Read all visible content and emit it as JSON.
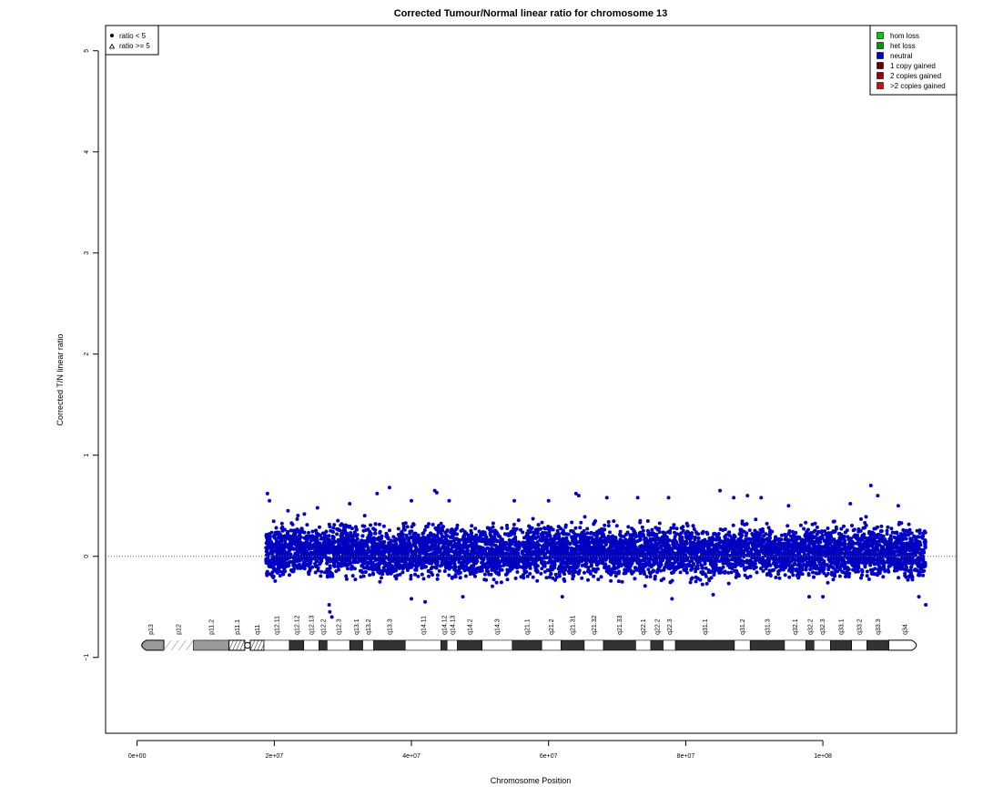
{
  "chart_data": {
    "type": "scatter",
    "title": "Corrected Tumour/Normal linear ratio for chromosome  13",
    "xlabel": "Chromosome Position",
    "ylabel": "Corrected T/N linear ratio",
    "xlim": [
      -4600000,
      119500000
    ],
    "ylim": [
      -1.75,
      5.25
    ],
    "x_ticks": [
      0,
      20000000,
      40000000,
      60000000,
      80000000,
      100000000
    ],
    "x_tick_labels": [
      "0e+00",
      "2e+07",
      "4e+07",
      "6e+07",
      "8e+07",
      "1e+08"
    ],
    "y_ticks": [
      -1,
      0,
      1,
      2,
      3,
      4,
      5
    ],
    "y_tick_labels": [
      "−1",
      "0",
      "1",
      "2",
      "3",
      "4",
      "5"
    ],
    "reference_line_y": 0,
    "grid": false,
    "point_color": "#0000c0",
    "series": [
      {
        "name": "neutral",
        "x_range": [
          18800000,
          115000000
        ],
        "band_upper": [
          0.36,
          0.42,
          0.34,
          0.4,
          0.38,
          0.33,
          0.38,
          0.36,
          0.35,
          0.37,
          0.34,
          0.36,
          0.38,
          0.35,
          0.37,
          0.36,
          0.34,
          0.38,
          0.35,
          0.37,
          0.34,
          0.36,
          0.37,
          0.35,
          0.36,
          0.38,
          0.36,
          0.4,
          0.37,
          0.35
        ],
        "band_lower": [
          -0.3,
          -0.32,
          -0.28,
          -0.3,
          -0.33,
          -0.35,
          -0.3,
          -0.29,
          -0.31,
          -0.3,
          -0.32,
          -0.3,
          -0.28,
          -0.31,
          -0.3,
          -0.29,
          -0.3,
          -0.32,
          -0.3,
          -0.33,
          -0.31,
          -0.29,
          -0.3,
          -0.28,
          -0.3,
          -0.31,
          -0.3,
          -0.32,
          -0.3,
          -0.34
        ],
        "outliers": [
          [
            19000000,
            0.62
          ],
          [
            19300000,
            0.55
          ],
          [
            22000000,
            0.45
          ],
          [
            26300000,
            0.48
          ],
          [
            28000000,
            -0.48
          ],
          [
            28100000,
            -0.55
          ],
          [
            28400000,
            -0.6
          ],
          [
            31000000,
            0.52
          ],
          [
            35000000,
            0.62
          ],
          [
            36800000,
            0.68
          ],
          [
            40000000,
            0.55
          ],
          [
            43400000,
            0.65
          ],
          [
            43700000,
            0.63
          ],
          [
            45500000,
            0.55
          ],
          [
            55000000,
            0.55
          ],
          [
            60000000,
            0.55
          ],
          [
            64000000,
            0.62
          ],
          [
            64400000,
            0.6
          ],
          [
            68500000,
            0.58
          ],
          [
            73000000,
            0.58
          ],
          [
            77500000,
            0.58
          ],
          [
            85000000,
            0.65
          ],
          [
            87000000,
            0.58
          ],
          [
            89000000,
            0.6
          ],
          [
            91000000,
            0.58
          ],
          [
            95000000,
            0.5
          ],
          [
            104000000,
            0.52
          ],
          [
            107000000,
            0.7
          ],
          [
            108000000,
            0.6
          ],
          [
            111000000,
            0.5
          ],
          [
            115000000,
            -0.48
          ],
          [
            40000000,
            -0.42
          ],
          [
            42000000,
            -0.45
          ],
          [
            47500000,
            -0.4
          ],
          [
            62000000,
            -0.4
          ],
          [
            78000000,
            -0.42
          ],
          [
            84000000,
            -0.38
          ],
          [
            98000000,
            -0.4
          ],
          [
            100000000,
            -0.4
          ],
          [
            114000000,
            -0.4
          ]
        ]
      }
    ],
    "ideogram": {
      "y": -0.88,
      "bands": [
        {
          "name": "p13",
          "start": 0,
          "end": 3900000,
          "stain": "gvar"
        },
        {
          "name": "p12",
          "start": 3900000,
          "end": 8200000,
          "stain": "stalk"
        },
        {
          "name": "p11.2",
          "start": 8200000,
          "end": 13400000,
          "stain": "gvar"
        },
        {
          "name": "p11.1",
          "start": 13400000,
          "end": 15700000,
          "stain": "acen"
        },
        {
          "name": "q11",
          "start": 16500000,
          "end": 18500000,
          "stain": "acen"
        },
        {
          "name": "q12.11",
          "start": 18500000,
          "end": 22200000,
          "stain": "gneg"
        },
        {
          "name": "q12.12",
          "start": 22200000,
          "end": 24300000,
          "stain": "gpos"
        },
        {
          "name": "q12.13",
          "start": 24300000,
          "end": 26500000,
          "stain": "gneg"
        },
        {
          "name": "q12.2",
          "start": 26500000,
          "end": 27700000,
          "stain": "gpos"
        },
        {
          "name": "q12.3",
          "start": 27700000,
          "end": 31000000,
          "stain": "gneg"
        },
        {
          "name": "q13.1",
          "start": 31000000,
          "end": 32900000,
          "stain": "gpos"
        },
        {
          "name": "q13.2",
          "start": 32900000,
          "end": 34500000,
          "stain": "gneg"
        },
        {
          "name": "q13.3",
          "start": 34500000,
          "end": 39100000,
          "stain": "gpos"
        },
        {
          "name": "q14.11",
          "start": 39100000,
          "end": 44300000,
          "stain": "gneg"
        },
        {
          "name": "q14.12",
          "start": 44300000,
          "end": 45200000,
          "stain": "gpos"
        },
        {
          "name": "q14.13",
          "start": 45200000,
          "end": 46700000,
          "stain": "gneg"
        },
        {
          "name": "q14.2",
          "start": 46700000,
          "end": 50300000,
          "stain": "gpos"
        },
        {
          "name": "q14.3",
          "start": 50300000,
          "end": 54700000,
          "stain": "gneg"
        },
        {
          "name": "q21.1",
          "start": 54700000,
          "end": 59000000,
          "stain": "gpos"
        },
        {
          "name": "q21.2",
          "start": 59000000,
          "end": 61800000,
          "stain": "gneg"
        },
        {
          "name": "q21.31",
          "start": 61800000,
          "end": 65200000,
          "stain": "gpos"
        },
        {
          "name": "q21.32",
          "start": 65200000,
          "end": 68000000,
          "stain": "gneg"
        },
        {
          "name": "q21.33",
          "start": 68000000,
          "end": 72700000,
          "stain": "gpos"
        },
        {
          "name": "q22.1",
          "start": 72700000,
          "end": 74900000,
          "stain": "gneg"
        },
        {
          "name": "q22.2",
          "start": 74900000,
          "end": 76700000,
          "stain": "gpos"
        },
        {
          "name": "q22.3",
          "start": 76700000,
          "end": 78500000,
          "stain": "gneg"
        },
        {
          "name": "q31.1",
          "start": 78500000,
          "end": 87100000,
          "stain": "gpos"
        },
        {
          "name": "q31.2",
          "start": 87100000,
          "end": 89400000,
          "stain": "gneg"
        },
        {
          "name": "q31.3",
          "start": 89400000,
          "end": 94400000,
          "stain": "gpos"
        },
        {
          "name": "q32.1",
          "start": 94400000,
          "end": 97500000,
          "stain": "gneg"
        },
        {
          "name": "q32.2",
          "start": 97500000,
          "end": 98700000,
          "stain": "gpos"
        },
        {
          "name": "q32.3",
          "start": 98700000,
          "end": 101100000,
          "stain": "gneg"
        },
        {
          "name": "q33.1",
          "start": 101100000,
          "end": 104200000,
          "stain": "gpos"
        },
        {
          "name": "q33.2",
          "start": 104200000,
          "end": 106400000,
          "stain": "gneg"
        },
        {
          "name": "q33.3",
          "start": 106400000,
          "end": 109600000,
          "stain": "gpos"
        },
        {
          "name": "q34",
          "start": 109600000,
          "end": 114300000,
          "stain": "gneg"
        }
      ]
    },
    "legend_left": {
      "placement": "top-left",
      "entries": [
        {
          "symbol": "dot",
          "label": "ratio < 5"
        },
        {
          "symbol": "triangle",
          "label": "ratio >= 5"
        }
      ]
    },
    "legend_right": {
      "placement": "top-right",
      "entries": [
        {
          "label": "hom loss",
          "color": "#00cc00"
        },
        {
          "label": "het loss",
          "color": "#009900"
        },
        {
          "label": "neutral",
          "color": "#0000c0"
        },
        {
          "label": "1 copy gained",
          "color": "#660000"
        },
        {
          "label": "2 copies gained",
          "color": "#990000"
        },
        {
          "label": ">2 copies gained",
          "color": "#cc1111"
        }
      ]
    }
  }
}
